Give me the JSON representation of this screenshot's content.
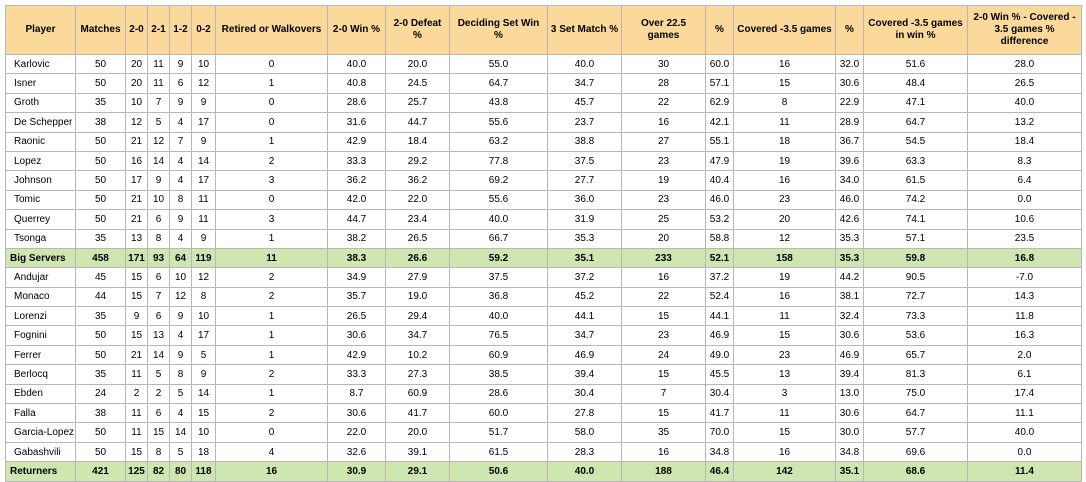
{
  "columns": [
    "Player",
    "Matches",
    "2-0",
    "2-1",
    "1-2",
    "0-2",
    "Retired or Walkovers",
    "2-0 Win %",
    "2-0 Defeat %",
    "Deciding Set Win %",
    "3 Set Match %",
    "Over 22.5 games",
    "%",
    "Covered -3.5 games",
    "%",
    "Covered -3.5 games in win %",
    "2-0 Win % - Covered - 3.5 games % difference"
  ],
  "rows": [
    {
      "total": false,
      "cells": [
        "Karlovic",
        "50",
        "20",
        "11",
        "9",
        "10",
        "0",
        "40.0",
        "20.0",
        "55.0",
        "40.0",
        "30",
        "60.0",
        "16",
        "32.0",
        "51.6",
        "28.0"
      ]
    },
    {
      "total": false,
      "cells": [
        "Isner",
        "50",
        "20",
        "11",
        "6",
        "12",
        "1",
        "40.8",
        "24.5",
        "64.7",
        "34.7",
        "28",
        "57.1",
        "15",
        "30.6",
        "48.4",
        "26.5"
      ]
    },
    {
      "total": false,
      "cells": [
        "Groth",
        "35",
        "10",
        "7",
        "9",
        "9",
        "0",
        "28.6",
        "25.7",
        "43.8",
        "45.7",
        "22",
        "62.9",
        "8",
        "22.9",
        "47.1",
        "40.0"
      ]
    },
    {
      "total": false,
      "cells": [
        "De Schepper",
        "38",
        "12",
        "5",
        "4",
        "17",
        "0",
        "31.6",
        "44.7",
        "55.6",
        "23.7",
        "16",
        "42.1",
        "11",
        "28.9",
        "64.7",
        "13.2"
      ]
    },
    {
      "total": false,
      "cells": [
        "Raonic",
        "50",
        "21",
        "12",
        "7",
        "9",
        "1",
        "42.9",
        "18.4",
        "63.2",
        "38.8",
        "27",
        "55.1",
        "18",
        "36.7",
        "54.5",
        "18.4"
      ]
    },
    {
      "total": false,
      "cells": [
        "Lopez",
        "50",
        "16",
        "14",
        "4",
        "14",
        "2",
        "33.3",
        "29.2",
        "77.8",
        "37.5",
        "23",
        "47.9",
        "19",
        "39.6",
        "63.3",
        "8.3"
      ]
    },
    {
      "total": false,
      "cells": [
        "Johnson",
        "50",
        "17",
        "9",
        "4",
        "17",
        "3",
        "36.2",
        "36.2",
        "69.2",
        "27.7",
        "19",
        "40.4",
        "16",
        "34.0",
        "61.5",
        "6.4"
      ]
    },
    {
      "total": false,
      "cells": [
        "Tomic",
        "50",
        "21",
        "10",
        "8",
        "11",
        "0",
        "42.0",
        "22.0",
        "55.6",
        "36.0",
        "23",
        "46.0",
        "23",
        "46.0",
        "74.2",
        "0.0"
      ]
    },
    {
      "total": false,
      "cells": [
        "Querrey",
        "50",
        "21",
        "6",
        "9",
        "11",
        "3",
        "44.7",
        "23.4",
        "40.0",
        "31.9",
        "25",
        "53.2",
        "20",
        "42.6",
        "74.1",
        "10.6"
      ]
    },
    {
      "total": false,
      "cells": [
        "Tsonga",
        "35",
        "13",
        "8",
        "4",
        "9",
        "1",
        "38.2",
        "26.5",
        "66.7",
        "35.3",
        "20",
        "58.8",
        "12",
        "35.3",
        "57.1",
        "23.5"
      ]
    },
    {
      "total": true,
      "cells": [
        "Big Servers",
        "458",
        "171",
        "93",
        "64",
        "119",
        "11",
        "38.3",
        "26.6",
        "59.2",
        "35.1",
        "233",
        "52.1",
        "158",
        "35.3",
        "59.8",
        "16.8"
      ]
    },
    {
      "total": false,
      "cells": [
        "Andujar",
        "45",
        "15",
        "6",
        "10",
        "12",
        "2",
        "34.9",
        "27.9",
        "37.5",
        "37.2",
        "16",
        "37.2",
        "19",
        "44.2",
        "90.5",
        "-7.0"
      ]
    },
    {
      "total": false,
      "cells": [
        "Monaco",
        "44",
        "15",
        "7",
        "12",
        "8",
        "2",
        "35.7",
        "19.0",
        "36.8",
        "45.2",
        "22",
        "52.4",
        "16",
        "38.1",
        "72.7",
        "14.3"
      ]
    },
    {
      "total": false,
      "cells": [
        "Lorenzi",
        "35",
        "9",
        "6",
        "9",
        "10",
        "1",
        "26.5",
        "29.4",
        "40.0",
        "44.1",
        "15",
        "44.1",
        "11",
        "32.4",
        "73.3",
        "11.8"
      ]
    },
    {
      "total": false,
      "cells": [
        "Fognini",
        "50",
        "15",
        "13",
        "4",
        "17",
        "1",
        "30.6",
        "34.7",
        "76.5",
        "34.7",
        "23",
        "46.9",
        "15",
        "30.6",
        "53.6",
        "16.3"
      ]
    },
    {
      "total": false,
      "cells": [
        "Ferrer",
        "50",
        "21",
        "14",
        "9",
        "5",
        "1",
        "42.9",
        "10.2",
        "60.9",
        "46.9",
        "24",
        "49.0",
        "23",
        "46.9",
        "65.7",
        "2.0"
      ]
    },
    {
      "total": false,
      "cells": [
        "Berlocq",
        "35",
        "11",
        "5",
        "8",
        "9",
        "2",
        "33.3",
        "27.3",
        "38.5",
        "39.4",
        "15",
        "45.5",
        "13",
        "39.4",
        "81.3",
        "6.1"
      ]
    },
    {
      "total": false,
      "cells": [
        "Ebden",
        "24",
        "2",
        "2",
        "5",
        "14",
        "1",
        "8.7",
        "60.9",
        "28.6",
        "30.4",
        "7",
        "30.4",
        "3",
        "13.0",
        "75.0",
        "17.4"
      ]
    },
    {
      "total": false,
      "cells": [
        "Falla",
        "38",
        "11",
        "6",
        "4",
        "15",
        "2",
        "30.6",
        "41.7",
        "60.0",
        "27.8",
        "15",
        "41.7",
        "11",
        "30.6",
        "64.7",
        "11.1"
      ]
    },
    {
      "total": false,
      "cells": [
        "Garcia-Lopez",
        "50",
        "11",
        "15",
        "14",
        "10",
        "0",
        "22.0",
        "20.0",
        "51.7",
        "58.0",
        "35",
        "70.0",
        "15",
        "30.0",
        "57.7",
        "40.0"
      ]
    },
    {
      "total": false,
      "cells": [
        "Gabashvili",
        "50",
        "15",
        "8",
        "5",
        "18",
        "4",
        "32.6",
        "39.1",
        "61.5",
        "28.3",
        "16",
        "34.8",
        "16",
        "34.8",
        "69.6",
        "0.0"
      ]
    },
    {
      "total": true,
      "cells": [
        "Returners",
        "421",
        "125",
        "82",
        "80",
        "118",
        "16",
        "30.9",
        "29.1",
        "50.6",
        "40.0",
        "188",
        "46.4",
        "142",
        "35.1",
        "68.6",
        "11.4"
      ]
    }
  ]
}
